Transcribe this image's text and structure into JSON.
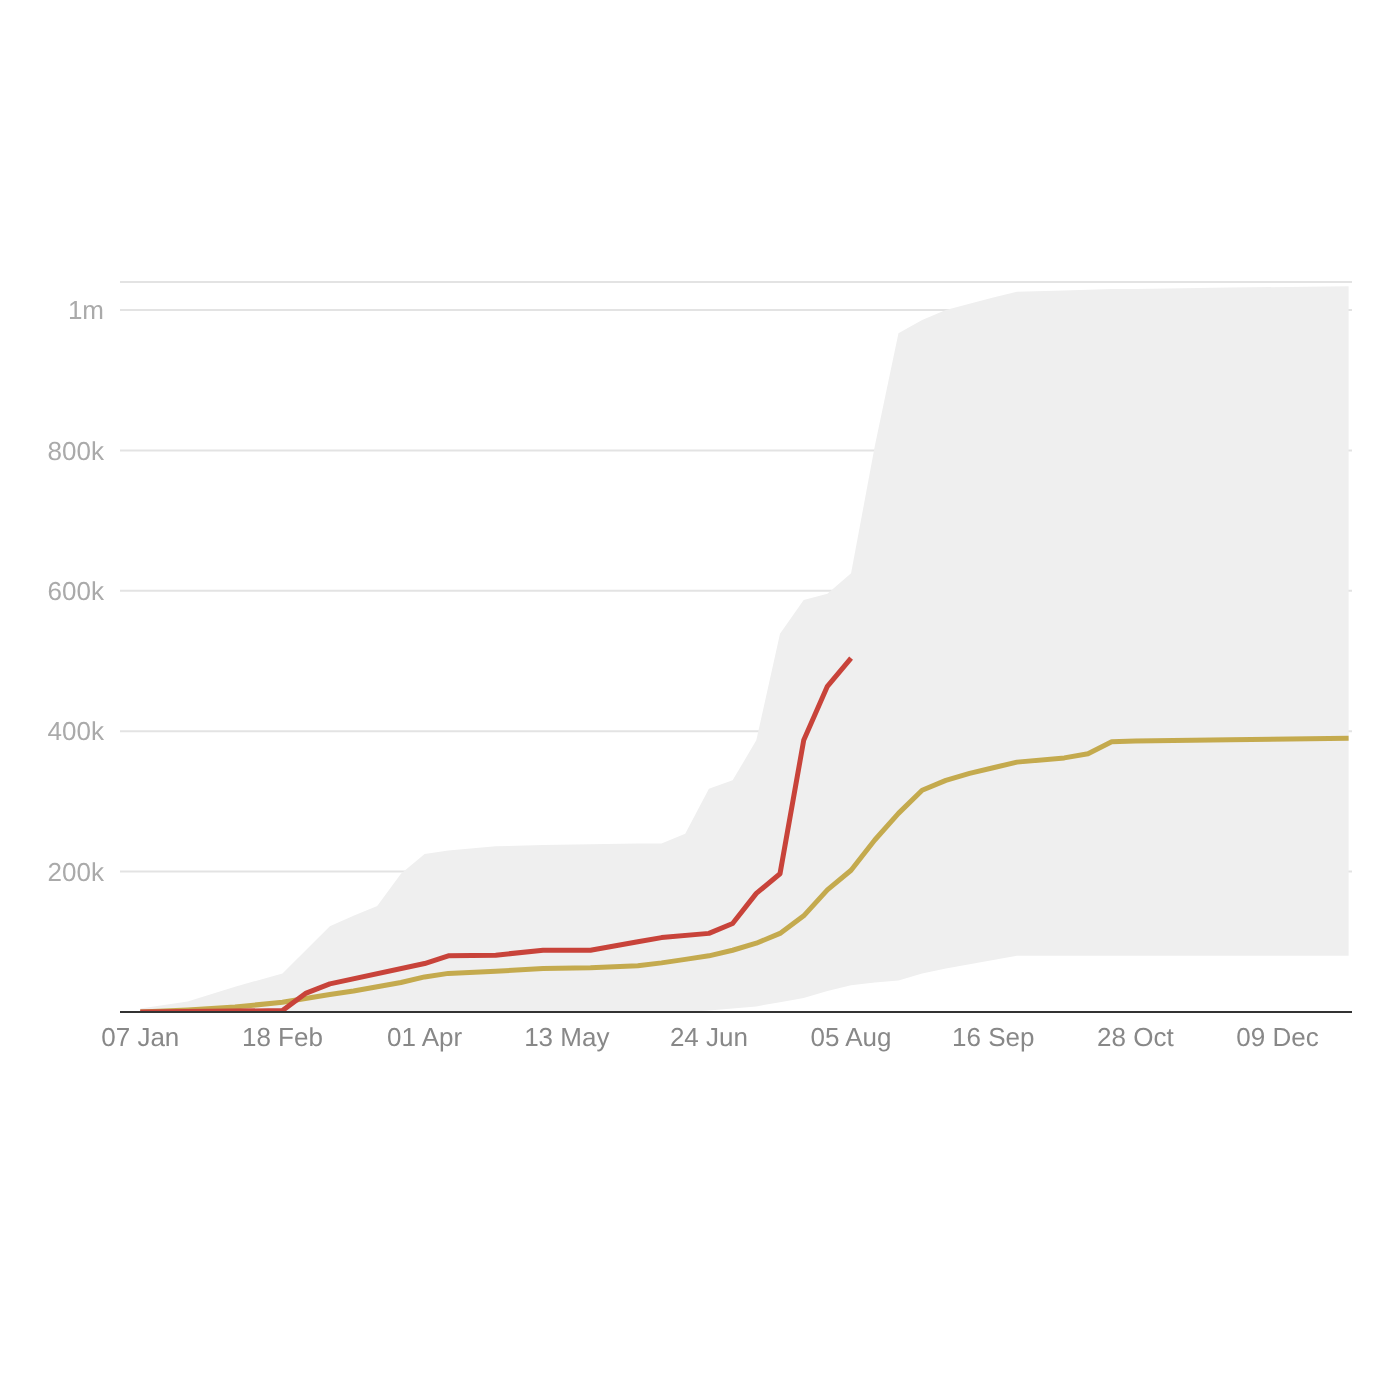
{
  "chart_data": {
    "type": "line",
    "x": [
      "--01-07",
      "--01-21",
      "--02-04",
      "--02-18",
      "--03-04",
      "--03-11",
      "--03-18",
      "--03-25",
      "--04-01",
      "--04-08",
      "--04-22",
      "--05-06",
      "--05-20",
      "--06-03",
      "--06-10",
      "--06-17",
      "--06-24",
      "--07-01",
      "--07-08",
      "--07-15",
      "--07-22",
      "--07-29",
      "--08-05",
      "--08-12",
      "--08-19",
      "--08-26",
      "--09-02",
      "--09-09",
      "--09-16",
      "--09-23",
      "--10-07",
      "--10-14",
      "--10-21",
      "--10-28",
      "--11-25",
      "--12-30"
    ],
    "series": [
      {
        "color": "#c4aa4e",
        "values": [
          0,
          3000,
          7000,
          14000,
          25000,
          30000,
          36000,
          42000,
          50000,
          55000,
          58000,
          62000,
          63000,
          66000,
          70000,
          75000,
          80000,
          88000,
          98000,
          112000,
          137000,
          174000,
          202000,
          245000,
          283000,
          316000,
          330000,
          340000,
          348000,
          356000,
          362000,
          368000,
          385000,
          386000,
          388000,
          390000
        ],
        "lower": [
          0,
          0,
          0,
          0,
          0,
          0,
          0,
          0,
          0,
          0,
          0,
          0,
          0,
          0,
          0,
          0,
          2000,
          5000,
          8000,
          14000,
          20000,
          30000,
          38000,
          42000,
          45000,
          55000,
          62000,
          68000,
          74000,
          80000,
          80000,
          80000,
          80000,
          80000,
          80000,
          80000
        ],
        "upper": [
          5000,
          15000,
          36000,
          55000,
          122000,
          137000,
          151000,
          197000,
          225000,
          230000,
          236000,
          238000,
          239000,
          240000,
          240000,
          254000,
          318000,
          330000,
          387000,
          539000,
          587000,
          596000,
          625000,
          806000,
          967000,
          986000,
          1000000,
          1009000,
          1018000,
          1026000,
          1028000,
          1029000,
          1030000,
          1030000,
          1032000,
          1034000
        ]
      },
      {
        "color": "#c8433a",
        "x": [
          "--01-07",
          "--02-18",
          "--02-25",
          "--03-04",
          "--04-01",
          "--04-08",
          "--04-22",
          "--05-06",
          "--05-20",
          "--06-03",
          "--06-10",
          "--06-24",
          "--07-01",
          "--07-08",
          "--07-15",
          "--07-22",
          "--07-29",
          "--08-05"
        ],
        "values": [
          0,
          2000,
          27000,
          40000,
          69000,
          80000,
          81000,
          88000,
          88000,
          100000,
          106000,
          112000,
          126000,
          169000,
          197000,
          387000,
          464000,
          504000
        ]
      }
    ],
    "xlim": [
      "--01-01",
      "--12-31"
    ],
    "xticks": [
      {
        "value": "--01-07",
        "label": "07 Jan"
      },
      {
        "value": "--02-18",
        "label": "18 Feb"
      },
      {
        "value": "--04-01",
        "label": "01 Apr"
      },
      {
        "value": "--05-13",
        "label": "13 May"
      },
      {
        "value": "--06-24",
        "label": "24 Jun"
      },
      {
        "value": "--08-05",
        "label": "05 Aug"
      },
      {
        "value": "--09-16",
        "label": "16 Sep"
      },
      {
        "value": "--10-28",
        "label": "28 Oct"
      },
      {
        "value": "--12-09",
        "label": "09 Dec"
      }
    ],
    "ylim": [
      0,
      1040000
    ],
    "yticks": [
      {
        "value": 0,
        "label": null
      },
      {
        "value": 200000,
        "label": "200k"
      },
      {
        "value": 400000,
        "label": "400k"
      },
      {
        "value": 600000,
        "label": "600k"
      },
      {
        "value": 800000,
        "label": "800k"
      },
      {
        "value": 1000000,
        "label": "1m"
      }
    ],
    "grid": "y"
  }
}
